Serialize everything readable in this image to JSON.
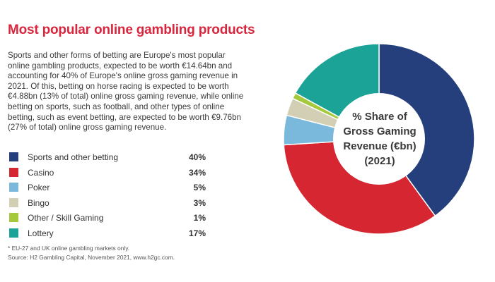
{
  "title": "Most popular online gambling products",
  "intro": "Sports and other forms of betting are Europe's most popular online gambling products, expected to be worth €14.64bn and accounting for 40% of Europe's online gross gaming revenue in 2021. Of this, betting on horse racing is expected to be worth €4.88bn (13% of total) online gross gaming revenue, while online betting on sports, such as football, and other types of online betting, such as event betting, are expected to be worth €9.76bn (27% of total) online gross gaming revenue.",
  "footnotes": {
    "note": "* EU-27 and UK online gambling markets only.",
    "source": "Source: H2 Gambling Capital, November 2021, www.h2gc.com."
  },
  "chart_data": {
    "type": "pie",
    "donut": true,
    "center_label": [
      "% Share of",
      "Gross Gaming",
      "Revenue (€bn)",
      "(2021)"
    ],
    "series": [
      {
        "name": "Sports and other betting",
        "value": 40,
        "label": "40%",
        "color": "#253f7c"
      },
      {
        "name": "Casino",
        "value": 34,
        "label": "34%",
        "color": "#d52631"
      },
      {
        "name": "Poker",
        "value": 5,
        "label": "5%",
        "color": "#7ab8dc"
      },
      {
        "name": "Bingo",
        "value": 3,
        "label": "3%",
        "color": "#d2cfb5"
      },
      {
        "name": "Other / Skill Gaming",
        "value": 1,
        "label": "1%",
        "color": "#a5c93a"
      },
      {
        "name": "Lottery",
        "value": 17,
        "label": "17%",
        "color": "#1aa396"
      }
    ],
    "legend_position": "left"
  }
}
